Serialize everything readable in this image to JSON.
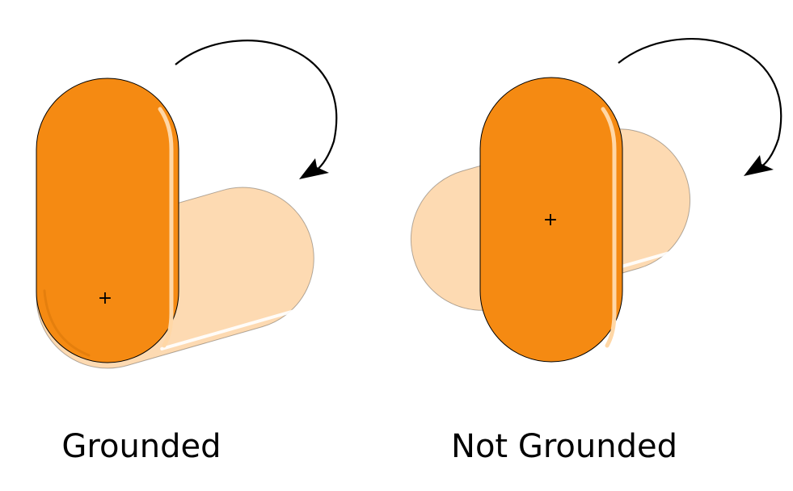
{
  "panels": [
    {
      "caption": "Grounded",
      "pivot_marker": "+",
      "rotation_arrow_icon": "clockwise-arrow-icon"
    },
    {
      "caption": "Not Grounded",
      "pivot_marker": "+",
      "rotation_arrow_icon": "clockwise-arrow-icon"
    }
  ],
  "colors": {
    "capsule_fill": "#f58a12",
    "capsule_fill_dark": "#e07a0a",
    "capsule_highlight": "#ffd7a6",
    "ghost_fill": "#fdd4a4",
    "ghost_highlight": "#ffffff",
    "outline": "#000000",
    "arrow": "#000000",
    "background": "#ffffff"
  }
}
